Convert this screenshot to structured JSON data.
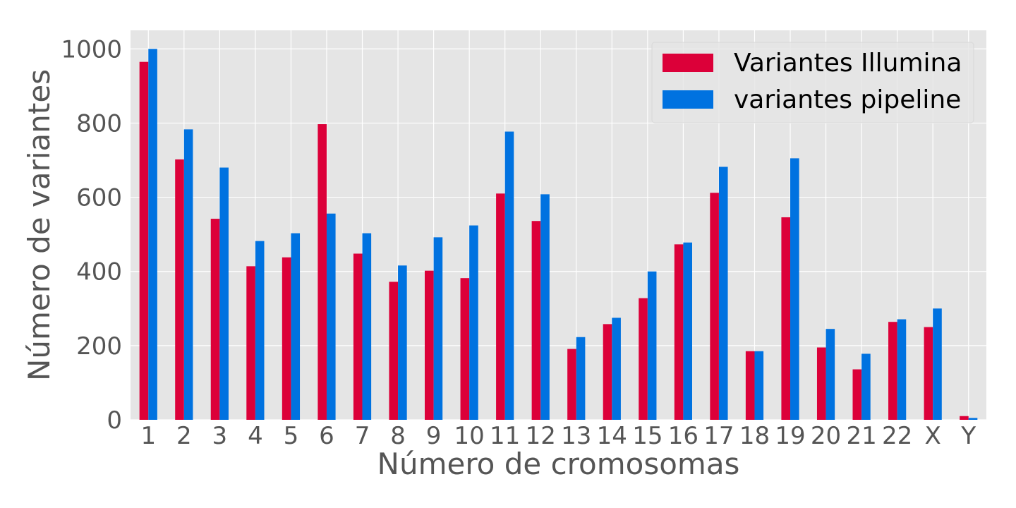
{
  "chart_data": {
    "type": "bar",
    "title": "",
    "xlabel": "Número de cromosomas",
    "ylabel": "Número de variantes",
    "categories": [
      "1",
      "2",
      "3",
      "4",
      "5",
      "6",
      "7",
      "8",
      "9",
      "10",
      "11",
      "12",
      "13",
      "14",
      "15",
      "16",
      "17",
      "18",
      "19",
      "20",
      "21",
      "22",
      "X",
      "Y"
    ],
    "series": [
      {
        "name": "Variantes Illumina",
        "color": "#dc0039",
        "values": [
          965,
          702,
          542,
          414,
          438,
          797,
          448,
          372,
          402,
          382,
          610,
          536,
          191,
          258,
          328,
          473,
          612,
          185,
          546,
          195,
          136,
          264,
          250,
          10
        ]
      },
      {
        "name": "variantes pipeline",
        "color": "#0072e0",
        "values": [
          1000,
          783,
          680,
          482,
          503,
          556,
          503,
          416,
          492,
          524,
          777,
          608,
          223,
          275,
          400,
          478,
          682,
          185,
          705,
          245,
          178,
          271,
          300,
          5
        ]
      }
    ],
    "ylim": [
      0,
      1050
    ],
    "yticks": [
      0,
      200,
      400,
      600,
      800,
      1000
    ],
    "grid": true,
    "legend_position": "top-right",
    "background": "#e5e5e5",
    "grid_color": "#ffffff"
  }
}
